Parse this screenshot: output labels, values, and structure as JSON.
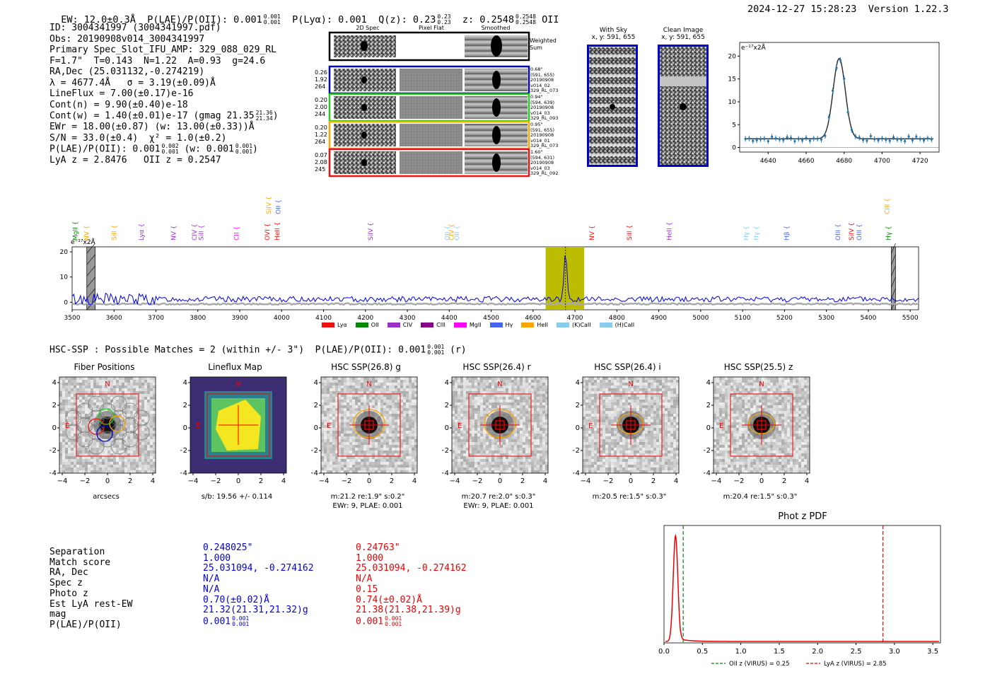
{
  "header": {
    "ew": "EW: 12.0±0.3Å",
    "plae_label": "P(LAE)/P(OII): 0.001",
    "plae_sup": "0.001",
    "plae_sub": "0.001",
    "plya": "P(Lyα): 0.001",
    "qz_label": "Q(z): 0.23",
    "qz_sup": "0.23",
    "qz_sub": "0.23",
    "z_label": "z: 0.2548",
    "z_sup": "0.2548",
    "z_sub": "0.2548",
    "z_line": "OII",
    "datetime": "2024-12-27 15:28:23",
    "version": "Version 1.22.3"
  },
  "info": {
    "id": "ID: 3004341997 (3004341997.pdf)",
    "obs": "Obs: 20190908v014_3004341997",
    "primary": "Primary Spec_Slot_IFU_AMP: 329_088_029_RL",
    "params": "F=1.7\"  T=0.143  N=1.22  A=0.93  g=24.6",
    "radec": "RA,Dec (25.031132,-0.274219)",
    "lambda": "λ = 4677.4Å   σ = 3.19(±0.09)Å",
    "lineflux": "LineFlux = 7.00(±0.17)e-16",
    "contn": "Cont(n) = 9.90(±0.40)e-18",
    "contw": "Cont(w) = 1.40(±0.01)e-17 (gmag 21.35",
    "contw_sup": "21.36",
    "contw_sub": "21.34",
    "contw_end": ")",
    "ewr": "EWr = 18.00(±0.87) (w: 13.00(±0.33))Å",
    "sn": "S/N = 33.0(±0.4)  χ² = 1.0(±0.2)",
    "plae": "P(LAE)/P(OII): 0.001",
    "plae_sup": "0.002",
    "plae_sub": "0.001",
    "plae_w": "(w: 0.001",
    "plae_w_sup": "0.001",
    "plae_w_sub": "0.001",
    "plae_w_end": ")",
    "zline": "LyA z = 2.8476   OII z = 0.2547"
  },
  "fiber_panel": {
    "col_2d": "2D Spec",
    "col_flat": "Pixel Flat",
    "col_smooth": "Smoothed",
    "weighted_sum": "Weighted Sum",
    "rows": [
      {
        "l1": "0.26",
        "l2": "1.92",
        "l3": "264",
        "r1": "0.68\"",
        "r2": "(591, 655)",
        "r3": "20190908",
        "r4": "v014_02",
        "r5": "329_RL_073",
        "color": "#0000cc"
      },
      {
        "l1": "0.20",
        "l2": "2.00",
        "l3": "244",
        "r1": "0.94\"",
        "r2": "(594, 639)",
        "r3": "20190908",
        "r4": "v014_03",
        "r5": "329_RL_093",
        "color": "#22cc22"
      },
      {
        "l1": "0.20",
        "l2": "1.22",
        "l3": "264",
        "r1": "0.95\"",
        "r2": "(591, 655)",
        "r3": "20190908",
        "r4": "v014_01",
        "r5": "329_RL_073",
        "color": "#ffa500"
      },
      {
        "l1": "0.07",
        "l2": "2.08",
        "l3": "245",
        "r1": "1.60\"",
        "r2": "(594, 631)",
        "r3": "20190908",
        "r4": "v014_03",
        "r5": "329_RL_092",
        "color": "#ee1111"
      }
    ]
  },
  "sky_panel": {
    "title": "With Sky",
    "coords": "x, y: 591, 655"
  },
  "clean_panel": {
    "title": "Clean Image",
    "coords": "x, y: 591, 655"
  },
  "zoom_spectrum": {
    "ylabel": "e⁻¹⁷x2Å",
    "x_ticks": [
      "4640",
      "4660",
      "4680",
      "4700",
      "4720"
    ],
    "y_ticks": [
      "0",
      "5",
      "10",
      "15",
      "20"
    ]
  },
  "full_spectrum": {
    "ylabel": "e⁻¹⁷x2Å",
    "x_ticks": [
      "3500",
      "3600",
      "3700",
      "3800",
      "3900",
      "4000",
      "4100",
      "4200",
      "4300",
      "4400",
      "4500",
      "4600",
      "4700",
      "4800",
      "4900",
      "5000",
      "5100",
      "5200",
      "5300",
      "5400",
      "5500"
    ],
    "y_ticks": [
      "0",
      "10",
      "20"
    ],
    "line_marks": [
      {
        "label": "MgII",
        "wave": 3508,
        "color": "#008800",
        "row": 0
      },
      {
        "label": "NV",
        "wave": 3535,
        "color": "#ffa500",
        "row": 0
      },
      {
        "label": "SiII",
        "wave": 3600,
        "color": "#ffa500",
        "row": 0
      },
      {
        "label": "Lyα",
        "wave": 3665,
        "color": "#9933cc",
        "row": 0
      },
      {
        "label": "NV",
        "wave": 3742,
        "color": "#9933cc",
        "row": 0
      },
      {
        "label": "CIV",
        "wave": 3792,
        "color": "#9933cc",
        "row": 0
      },
      {
        "label": "SiII",
        "wave": 3808,
        "color": "#9933cc",
        "row": 0
      },
      {
        "label": "CII",
        "wave": 3892,
        "color": "#ff00ff",
        "row": 0
      },
      {
        "label": "OVI",
        "wave": 3966,
        "color": "#ee1111",
        "row": 0
      },
      {
        "label": "SiIV",
        "wave": 3969,
        "color": "#ffa500",
        "row": 1
      },
      {
        "label": "HeII",
        "wave": 3989,
        "color": "#ee1111",
        "row": 0
      },
      {
        "label": "OII",
        "wave": 3992,
        "color": "#4466ee",
        "row": 1
      },
      {
        "label": "SiIV",
        "wave": 4212,
        "color": "#9933cc",
        "row": 0
      },
      {
        "label": "OII",
        "wave": 4395,
        "color": "#88ccee",
        "row": 0
      },
      {
        "label": "CIV",
        "wave": 4405,
        "color": "#ffa500",
        "row": 0
      },
      {
        "label": "OII",
        "wave": 4418,
        "color": "#88ccee",
        "row": 0
      },
      {
        "label": "NV",
        "wave": 4740,
        "color": "#ee1111",
        "row": 0
      },
      {
        "label": "SiII",
        "wave": 4830,
        "color": "#ee1111",
        "row": 0
      },
      {
        "label": "HeII",
        "wave": 4925,
        "color": "#9933cc",
        "row": 0
      },
      {
        "label": "Hγ",
        "wave": 5108,
        "color": "#88ccee",
        "row": 0
      },
      {
        "label": "Hγ",
        "wave": 5133,
        "color": "#88ccee",
        "row": 0
      },
      {
        "label": "Hβ",
        "wave": 5205,
        "color": "#4466ee",
        "row": 0
      },
      {
        "label": "OIII",
        "wave": 5328,
        "color": "#4466ee",
        "row": 0
      },
      {
        "label": "SiIV",
        "wave": 5360,
        "color": "#ee1111",
        "row": 0
      },
      {
        "label": "OIII",
        "wave": 5378,
        "color": "#4466ee",
        "row": 0
      },
      {
        "label": "Hγ",
        "wave": 5448,
        "color": "#008800",
        "row": 0
      },
      {
        "label": "CIII",
        "wave": 5445,
        "color": "#ffa500",
        "row": 1
      }
    ],
    "legend": [
      {
        "label": "Lyα",
        "color": "#ee1111"
      },
      {
        "label": "OII",
        "color": "#008800"
      },
      {
        "label": "CIV",
        "color": "#9933cc"
      },
      {
        "label": "CIII",
        "color": "#880088"
      },
      {
        "label": "MgII",
        "color": "#ff00ff"
      },
      {
        "label": "Hγ",
        "color": "#4466ee"
      },
      {
        "label": "HeII",
        "color": "#ffa500"
      },
      {
        "label": "(K)CaII",
        "color": "#88ccee"
      },
      {
        "label": "(H)CaII",
        "color": "#88ccee"
      }
    ]
  },
  "hsc_header": {
    "text": "HSC-SSP : Possible Matches = 2 (within +/- 3\")  P(LAE)/P(OII): 0.001",
    "sup": "0.001",
    "sub": "0.001",
    "end": "(r)"
  },
  "cutouts": [
    {
      "title": "Fiber Positions",
      "cap1": "arcsecs",
      "cap2": ""
    },
    {
      "title": "Lineflux Map",
      "cap1": "s/b: 19.56 +/- 0.114",
      "cap2": ""
    },
    {
      "title": "HSC SSP(26.8) g",
      "cap1": "m:21.2  re:1.9\"  s:0.2\"",
      "cap2": "EWr: 9, PLAE: 0.001"
    },
    {
      "title": "HSC SSP(26.4) r",
      "cap1": "m:20.7  re:2.0\"  s:0.3\"",
      "cap2": "EWr: 9, PLAE: 0.001"
    },
    {
      "title": "HSC SSP(26.4) i",
      "cap1": "m:20.5  re:1.5\"  s:0.3\"",
      "cap2": ""
    },
    {
      "title": "HSC SSP(25.5) z",
      "cap1": "m:20.4  re:1.5\"  s:0.3\"",
      "cap2": ""
    }
  ],
  "cutout_axis": {
    "ticks": [
      "−4",
      "−2",
      "0",
      "2",
      "4"
    ],
    "y_ticks": [
      "4",
      "2",
      "0",
      "−2",
      "−4"
    ],
    "north": "N",
    "east": "E"
  },
  "match_table": {
    "labels": [
      "Separation",
      "Match score",
      "RA, Dec",
      "Spec z",
      "Photo z",
      "Est LyA rest-EW",
      "mag",
      "P(LAE)/P(OII)"
    ],
    "blue": [
      "0.248025\"",
      "1.000",
      "25.031094, -0.274162",
      "N/A",
      "N/A",
      "0.70(±0.02)Å",
      "21.32(21.31,21.32)g",
      "0.001"
    ],
    "blue_sup": "0.001",
    "blue_sub": "0.001",
    "red": [
      "0.24763\"",
      "1.000",
      "25.031094, -0.274162",
      "N/A",
      "0.15",
      "0.74(±0.02)Å",
      "21.38(21.38,21.39)g",
      "0.001"
    ],
    "red_sup": "0.001",
    "red_sub": "0.001"
  },
  "photz": {
    "title": "Phot z PDF",
    "x_ticks": [
      "0.0",
      "0.5",
      "1.0",
      "1.5",
      "2.0",
      "2.5",
      "3.0",
      "3.5"
    ],
    "legend_oii": "OII z (VIRUS) = 0.25",
    "legend_lya": "LyA z (VIRUS) = 2.85",
    "oii_z": 0.25,
    "lya_z": 2.85,
    "peak_z": 0.15
  },
  "chart_data": [
    {
      "type": "line",
      "title": "",
      "xlabel": "",
      "ylabel": "e⁻¹⁷x2Å",
      "xlim": [
        4625,
        4730
      ],
      "ylim": [
        -1,
        23
      ],
      "peak_wave": 4677.4,
      "peak_flux": 19.5,
      "continuum": 1.9
    },
    {
      "type": "line",
      "xlim": [
        3500,
        5520
      ],
      "ylim": [
        -3,
        22
      ],
      "highlight": [
        4630,
        4722
      ],
      "peak_wave": 4677.4,
      "peak_flux": 20,
      "continuum": 1.2
    },
    {
      "type": "line",
      "title": "Phot z PDF",
      "xlim": [
        0,
        3.6
      ],
      "ylim": [
        0,
        1
      ],
      "peak_z": 0.15
    }
  ]
}
